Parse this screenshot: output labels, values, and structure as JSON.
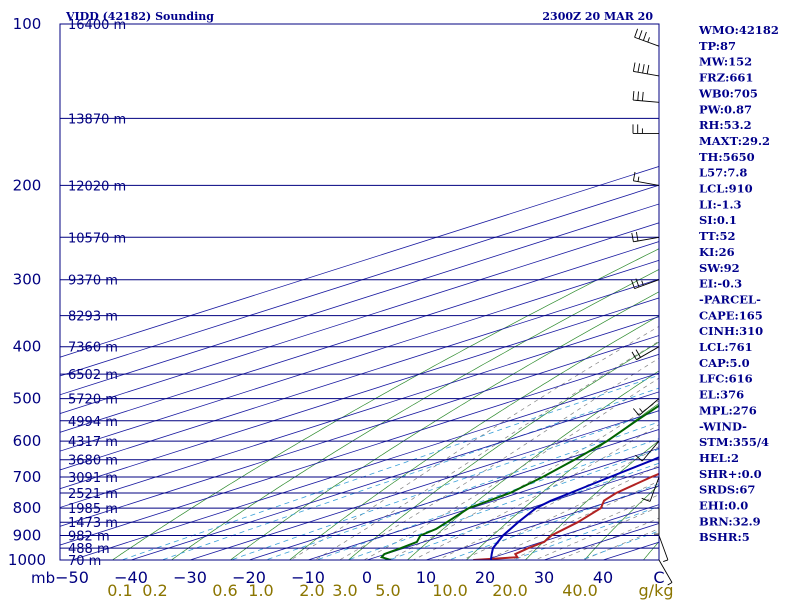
{
  "header": {
    "title_left": "VIDD (42182) Sounding",
    "title_right": "2300Z 20 MAR 20"
  },
  "chart_data": {
    "type": "skew-t log-p",
    "pressure_levels": [
      100,
      200,
      300,
      400,
      500,
      600,
      700,
      800,
      900,
      1000
    ],
    "pressure_axis_label": "mb",
    "height_labels": [
      {
        "p": 100,
        "text": "16400 m"
      },
      {
        "p": 150,
        "text": "13870 m"
      },
      {
        "p": 200,
        "text": "12020 m"
      },
      {
        "p": 250,
        "text": "10570 m"
      },
      {
        "p": 300,
        "text": "9370 m"
      },
      {
        "p": 350,
        "text": "8293 m"
      },
      {
        "p": 400,
        "text": "7360 m"
      },
      {
        "p": 450,
        "text": "6502 m"
      },
      {
        "p": 500,
        "text": "5720 m"
      },
      {
        "p": 550,
        "text": "4994 m"
      },
      {
        "p": 600,
        "text": "4317 m"
      },
      {
        "p": 650,
        "text": "3680 m"
      },
      {
        "p": 700,
        "text": "3091 m"
      },
      {
        "p": 750,
        "text": "2521 m"
      },
      {
        "p": 800,
        "text": "1985 m"
      },
      {
        "p": 850,
        "text": "1473 m"
      },
      {
        "p": 900,
        "text": "982 m"
      },
      {
        "p": 950,
        "text": "488 m"
      },
      {
        "p": 1000,
        "text": "70 m"
      }
    ],
    "temperature_ticks": [
      -50,
      -40,
      -30,
      -20,
      -10,
      0,
      10,
      20,
      30,
      40
    ],
    "temperature_tick_labels": [
      "−50",
      "−40",
      "−30",
      "−20",
      "−10",
      "0",
      "10",
      "20",
      "30",
      "40"
    ],
    "temperature_unit": "C",
    "mixing_ratio_labels": [
      "0.1",
      "0.2",
      "0.6",
      "1.0",
      "2.0",
      "3.0",
      "5.0",
      "10.0",
      "20.0",
      "40.0"
    ],
    "mixing_ratio_unit": "g/kg",
    "series": [
      {
        "name": "Temperature",
        "color": "#b22222",
        "points": [
          [
            1000,
            18.0
          ],
          [
            988,
            24.0
          ],
          [
            975,
            22.0
          ],
          [
            950,
            21.0
          ],
          [
            925,
            20.4
          ],
          [
            900,
            18.2
          ],
          [
            850,
            15.6
          ],
          [
            800,
            12.0
          ],
          [
            775,
            8.6
          ],
          [
            750,
            6.6
          ],
          [
            700,
            4.0
          ],
          [
            650,
            2.0
          ],
          [
            600,
            -3.4
          ],
          [
            575,
            -4.0
          ],
          [
            550,
            -6.0
          ],
          [
            500,
            -9.8
          ],
          [
            450,
            -14.6
          ],
          [
            400,
            -19.8
          ],
          [
            350,
            -27.0
          ],
          [
            300,
            -35.6
          ],
          [
            250,
            -44.6
          ],
          [
            238,
            -46.6
          ],
          [
            200,
            -40.8
          ],
          [
            175,
            -41.8
          ],
          [
            150,
            -47.0
          ],
          [
            140,
            -48.8
          ],
          [
            125,
            -54.0
          ],
          [
            117,
            -55.2
          ],
          [
            100,
            -64.0
          ]
        ]
      },
      {
        "name": "Dewpoint",
        "color": "#006400",
        "points": [
          [
            1000,
            4.0
          ],
          [
            988,
            1.0
          ],
          [
            975,
            -0.2
          ],
          [
            950,
            -0.6
          ],
          [
            925,
            -1.2
          ],
          [
            900,
            -4.0
          ],
          [
            875,
            -4.8
          ],
          [
            850,
            -6.6
          ],
          [
            800,
            -10.4
          ],
          [
            750,
            -11.4
          ],
          [
            700,
            -14.4
          ],
          [
            650,
            -18.2
          ],
          [
            600,
            -22.6
          ],
          [
            550,
            -28.4
          ],
          [
            500,
            -34.6
          ],
          [
            450,
            -40.8
          ],
          [
            425,
            -44.0
          ],
          [
            400,
            -48.4
          ],
          [
            350,
            -55.0
          ],
          [
            300,
            -61.0
          ],
          [
            250,
            -59.0
          ],
          [
            230,
            -60.0
          ],
          [
            200,
            -64.0
          ],
          [
            150,
            -75.0
          ],
          [
            140,
            -76.0
          ],
          [
            120,
            -80.0
          ],
          [
            100,
            -86.0
          ]
        ]
      },
      {
        "name": "Parcel",
        "color": "#0000b0",
        "points": [
          [
            1000,
            21.0
          ],
          [
            975,
            18.0
          ],
          [
            950,
            15.0
          ],
          [
            900,
            10.0
          ],
          [
            850,
            5.5
          ],
          [
            800,
            1.0
          ],
          [
            775,
            -0.4
          ],
          [
            750,
            -1.2
          ],
          [
            700,
            -3.0
          ],
          [
            650,
            -4.8
          ],
          [
            600,
            -7.6
          ],
          [
            550,
            -10.8
          ],
          [
            500,
            -14.2
          ],
          [
            450,
            -18.6
          ],
          [
            400,
            -24.6
          ],
          [
            350,
            -31.6
          ],
          [
            300,
            -40.2
          ],
          [
            250,
            -50.8
          ],
          [
            230,
            -56.4
          ],
          [
            200,
            -64.0
          ],
          [
            175,
            -71.0
          ],
          [
            150,
            -80.0
          ],
          [
            125,
            -90.5
          ],
          [
            100,
            -103.0
          ]
        ]
      }
    ],
    "wind_barbs": [
      {
        "p": 110,
        "dir": 290,
        "spd": 35
      },
      {
        "p": 125,
        "dir": 280,
        "spd": 40
      },
      {
        "p": 140,
        "dir": 275,
        "spd": 30
      },
      {
        "p": 160,
        "dir": 270,
        "spd": 25
      },
      {
        "p": 200,
        "dir": 280,
        "spd": 15
      },
      {
        "p": 250,
        "dir": 260,
        "spd": 20
      },
      {
        "p": 300,
        "dir": 250,
        "spd": 25
      },
      {
        "p": 400,
        "dir": 240,
        "spd": 20
      },
      {
        "p": 500,
        "dir": 230,
        "spd": 15
      },
      {
        "p": 600,
        "dir": 220,
        "spd": 10
      },
      {
        "p": 700,
        "dir": 200,
        "spd": 10
      },
      {
        "p": 800,
        "dir": 180,
        "spd": 5
      },
      {
        "p": 900,
        "dir": 160,
        "spd": 5
      },
      {
        "p": 1000,
        "dir": 150,
        "spd": 5
      }
    ],
    "grid": true
  },
  "indices": [
    "WMO:42182",
    "TP:87",
    "MW:152",
    "FRZ:661",
    "WB0:705",
    "PW:0.87",
    "RH:53.2",
    "MAXT:29.2",
    "TH:5650",
    "L57:7.8",
    "LCL:910",
    "LI:-1.3",
    "SI:0.1",
    "TT:52",
    "KI:26",
    "SW:92",
    "EI:-0.3",
    "-PARCEL-",
    "CAPE:165",
    "CINH:310",
    "LCL:761",
    "CAP:5.0",
    "LFC:616",
    "EL:376",
    "MPL:276",
    "-WIND-",
    "STM:355/4",
    "HEL:2",
    "SHR+:0.0",
    "SRDS:67",
    "EHI:0.0",
    "BRN:32.9",
    "BSHR:5"
  ]
}
